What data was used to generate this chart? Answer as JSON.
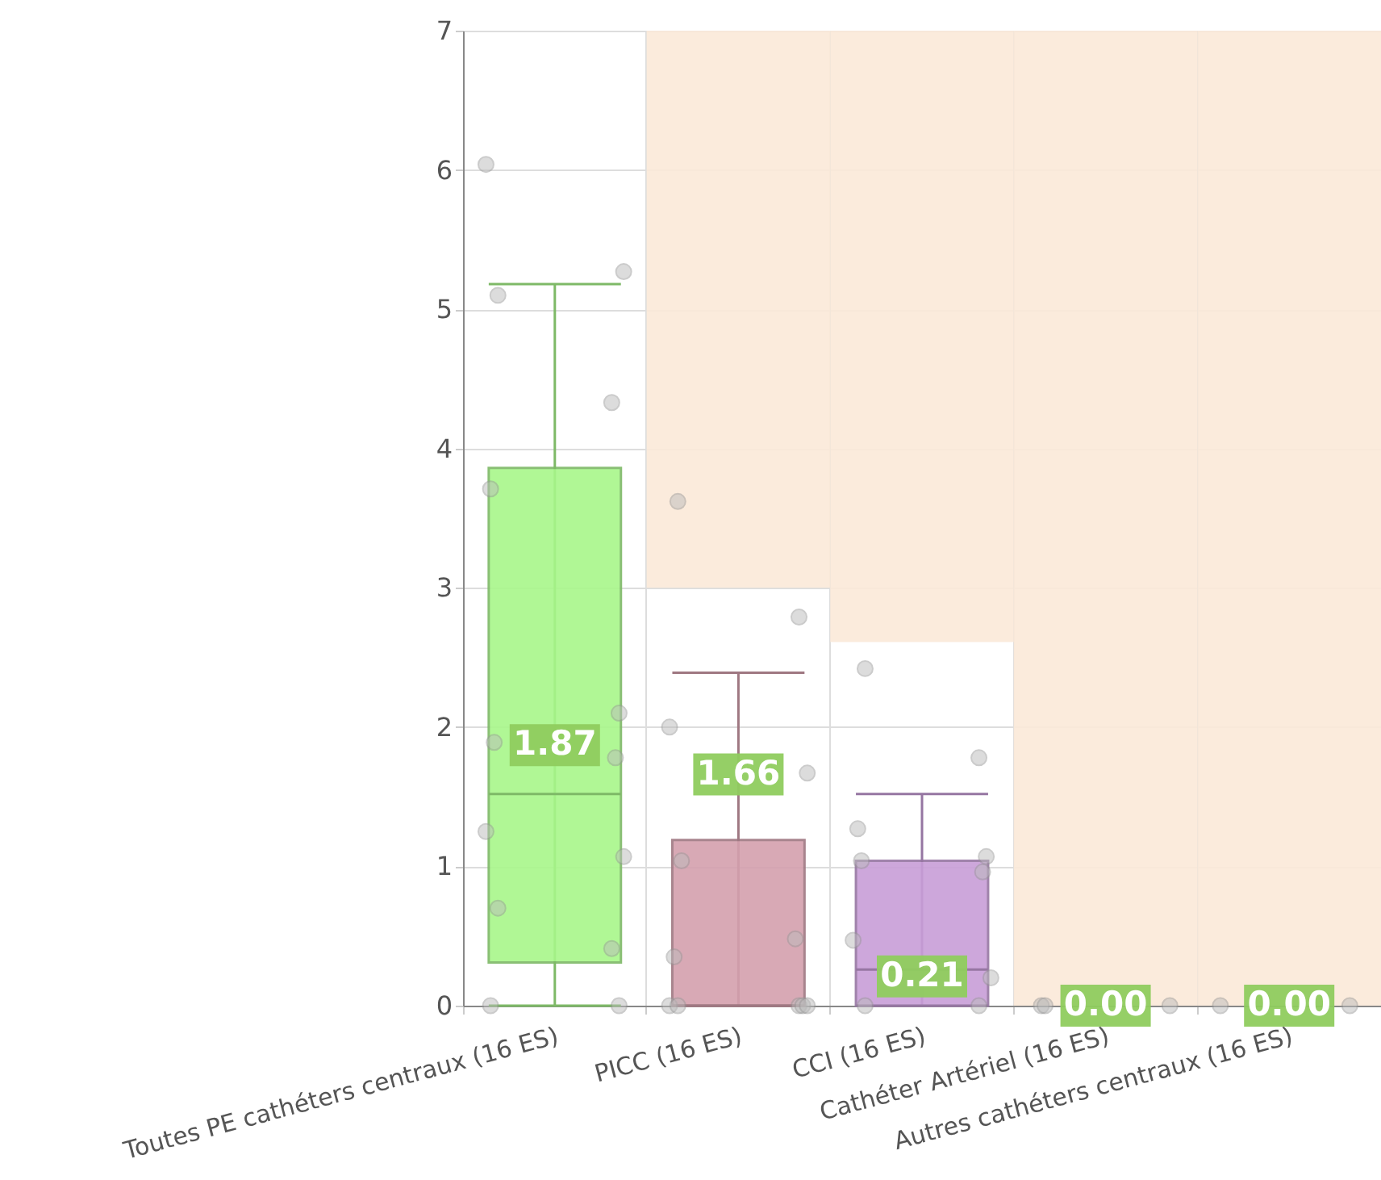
{
  "chart_data": {
    "type": "box",
    "categories": [
      "Toutes PE cathéters centraux (16 ES)",
      "PICC (16 ES)",
      "CCI (16 ES)",
      "Cathéter Artériel (16 ES)",
      "Autres cathéters centraux (16 ES)"
    ],
    "ylim": [
      0,
      7
    ],
    "yticks": [
      0,
      1,
      2,
      3,
      4,
      5,
      6,
      7
    ],
    "grid": true,
    "series": [
      {
        "type": "bar",
        "color": "#fbe9d8",
        "base": [
          null,
          3.0,
          2.61,
          0,
          0
        ],
        "values": [
          null,
          4.0,
          4.39,
          7,
          7
        ]
      },
      {
        "colors": [
          "#a8f78a",
          "#d4a0ae",
          "#c89ed8",
          null,
          null
        ],
        "boxes": [
          {
            "low": 0,
            "q1": 0.31,
            "median": 1.52,
            "q3": 3.86,
            "high": 5.18
          },
          {
            "low": 0,
            "q1": 0,
            "median": 0,
            "q3": 1.19,
            "high": 2.39
          },
          {
            "low": 0,
            "q1": 0,
            "median": 0.26,
            "q3": 1.04,
            "high": 1.52
          },
          null,
          null
        ]
      },
      {
        "type": "scatter",
        "color": "#bbbbbb",
        "x": [
          "Toutes PE cathéters centraux (16 ES)",
          "Toutes PE cathéters centraux (16 ES)",
          "Toutes PE cathéters centraux (16 ES)",
          "Toutes PE cathéters centraux (16 ES)",
          "Toutes PE cathéters centraux (16 ES)",
          "Toutes PE cathéters centraux (16 ES)",
          "Toutes PE cathéters centraux (16 ES)",
          "Toutes PE cathéters centraux (16 ES)",
          "Toutes PE cathéters centraux (16 ES)",
          "Toutes PE cathéters centraux (16 ES)",
          "Toutes PE cathéters centraux (16 ES)",
          "Toutes PE cathéters centraux (16 ES)",
          "Toutes PE cathéters centraux (16 ES)",
          "Toutes PE cathéters centraux (16 ES)",
          "PICC (16 ES)",
          "PICC (16 ES)",
          "PICC (16 ES)",
          "PICC (16 ES)",
          "PICC (16 ES)",
          "PICC (16 ES)",
          "PICC (16 ES)",
          "PICC (16 ES)",
          "PICC (16 ES)",
          "PICC (16 ES)",
          "PICC (16 ES)",
          "PICC (16 ES)",
          "CCI (16 ES)",
          "CCI (16 ES)",
          "CCI (16 ES)",
          "CCI (16 ES)",
          "CCI (16 ES)",
          "CCI (16 ES)",
          "CCI (16 ES)",
          "CCI (16 ES)",
          "CCI (16 ES)",
          "CCI (16 ES)",
          "Cathéter Artériel (16 ES)",
          "Cathéter Artériel (16 ES)",
          "Cathéter Artériel (16 ES)",
          "Autres cathéters centraux (16 ES)",
          "Autres cathéters centraux (16 ES)"
        ],
        "values": [
          6.04,
          5.27,
          5.1,
          4.33,
          3.71,
          2.1,
          1.89,
          1.78,
          1.25,
          1.07,
          0.7,
          0.41,
          0,
          0,
          3.62,
          2.79,
          2.0,
          1.67,
          1.04,
          0.48,
          0.35,
          0,
          0,
          0,
          0,
          0,
          2.42,
          1.78,
          1.27,
          1.07,
          1.04,
          0.96,
          0.47,
          0.2,
          0,
          0,
          0,
          0,
          0,
          0,
          0
        ]
      }
    ],
    "annotations": [
      {
        "text": "1.87",
        "x": "Toutes PE cathéters centraux (16 ES)",
        "y": 1.87
      },
      {
        "text": "1.66",
        "x": "PICC (16 ES)",
        "y": 1.66
      },
      {
        "text": "0.21",
        "x": "CCI (16 ES)",
        "y": 0.21
      },
      {
        "text": "0.00",
        "x": "Cathéter Artériel (16 ES)",
        "y": 0
      },
      {
        "text": "0.00",
        "x": "Autres cathéters centraux (16 ES)",
        "y": 0
      }
    ]
  }
}
